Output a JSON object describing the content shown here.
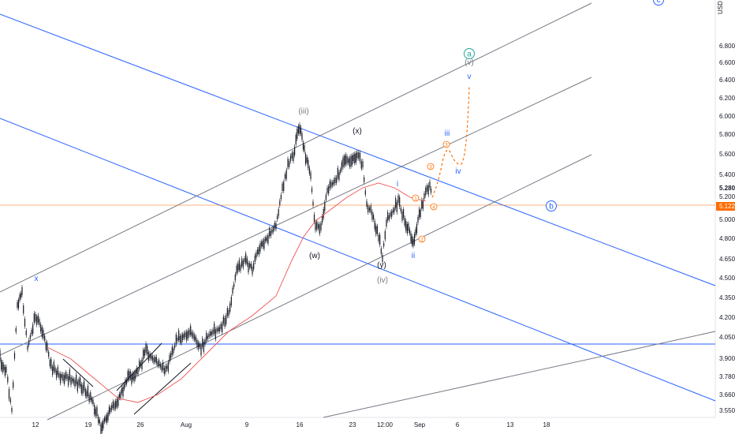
{
  "chart_data": {
    "type": "line",
    "currency": "USD",
    "yticks": [
      "6.800",
      "6.600",
      "6.400",
      "6.200",
      "6.000",
      "5.800",
      "5.600",
      "5.400",
      "5.200",
      "5.000",
      "4.800",
      "4.650",
      "4.500",
      "4.350",
      "4.200",
      "4.050",
      "3.900",
      "3.780",
      "3.660",
      "3.550"
    ],
    "xticks": [
      "12",
      "19",
      "26",
      "Aug",
      "9",
      "16",
      "23",
      "12:00",
      "Sep",
      "6",
      "13",
      "18"
    ],
    "last_price": "5.280",
    "marker_price": "5.122",
    "ma_color": "#ef5350",
    "channel_color_blue": "#2962ff",
    "channel_color_gray": "#787b86",
    "price_color": "#131722",
    "projection_color": "#ff6d00",
    "wave_labels": {
      "x": "x",
      "w": "(w)",
      "iii_paren": "(iii)",
      "x_paren": "(x)",
      "y_paren": "(y)",
      "iv_paren": "(iv)",
      "i_small": "i",
      "ii_small": "ii",
      "iii_proj": "iii",
      "iv_proj": "iv",
      "v_paren": "(v)",
      "v_proj": "v",
      "a_circle": "a",
      "b_circle": "b",
      "c_circle": "c",
      "n1": "1",
      "n2": "2",
      "n3": "3",
      "n4": "4",
      "n5": "5",
      "n4b": "4",
      "n3p": "3"
    }
  }
}
